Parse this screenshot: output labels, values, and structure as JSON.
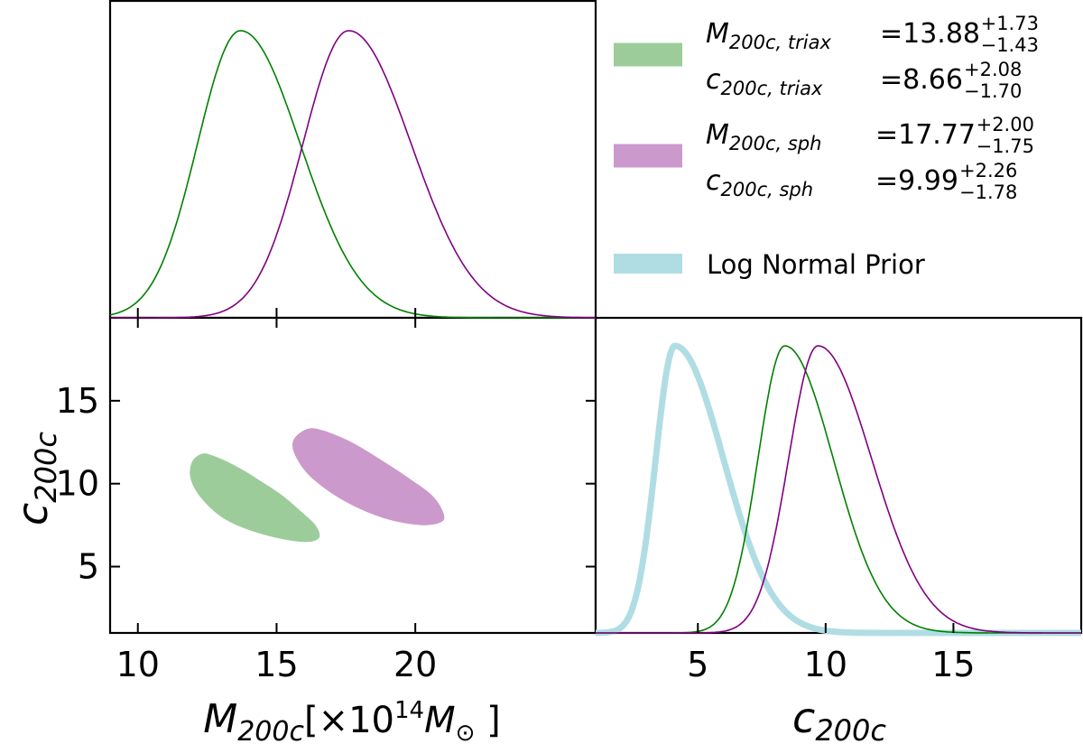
{
  "chart_data": {
    "type": "corner",
    "colors": {
      "triaxial": "#008000",
      "spherical": "#800080",
      "triaxial_fill": "#9dcc9b",
      "spherical_fill": "#cc99cc",
      "prior": "#b0dde3"
    },
    "legend": [
      {
        "swatch": "triaxial_fill",
        "rows": [
          {
            "symbol": "M",
            "sub": "200c, triax",
            "eq": "=",
            "value": "13.88",
            "plus": "+1.73",
            "minus": "−1.43"
          },
          {
            "symbol": "c",
            "sub": "200c, triax",
            "eq": "=",
            "value": "8.66",
            "plus": "+2.08",
            "minus": "−1.70"
          }
        ]
      },
      {
        "swatch": "spherical_fill",
        "rows": [
          {
            "symbol": "M",
            "sub": "200c, sph",
            "eq": "=",
            "value": "17.77",
            "plus": "+2.00",
            "minus": "−1.75"
          },
          {
            "symbol": "c",
            "sub": "200c, sph",
            "eq": "=",
            "value": "9.99",
            "plus": "+2.26",
            "minus": "−1.78"
          }
        ]
      },
      {
        "swatch": "prior",
        "label": "Log Normal Prior"
      }
    ],
    "panels": {
      "mass_marginal": {
        "type": "line",
        "xlim": [
          9,
          26.5
        ],
        "ticks": [
          10,
          15,
          20
        ],
        "series": [
          {
            "key": "triaxial",
            "mode": 13.7,
            "sigma_left": 1.55,
            "sigma_right": 2.15
          },
          {
            "key": "spherical",
            "mode": 17.6,
            "sigma_left": 1.65,
            "sigma_right": 2.25
          }
        ]
      },
      "joint": {
        "type": "contour",
        "xlim": [
          9,
          26.5
        ],
        "ylim": [
          1,
          20
        ],
        "xticks": [
          10,
          15,
          20
        ],
        "yticks": [
          5,
          10,
          15
        ],
        "xlabel_symbol": "M",
        "xlabel_sub": "200c",
        "xlabel_unit_open": "[×10",
        "xlabel_unit_exp": "14",
        "xlabel_unit_sym": "M",
        "xlabel_unit_sub": "⊙",
        "xlabel_unit_close": " ]",
        "ylabel_symbol": "c",
        "ylabel_sub": "200c",
        "regions": [
          {
            "key": "triaxial",
            "boundary": [
              [
                12.3,
                11.8
              ],
              [
                12.7,
                11.7
              ],
              [
                13.5,
                11.1
              ],
              [
                14.3,
                10.3
              ],
              [
                15.2,
                9.3
              ],
              [
                15.9,
                8.3
              ],
              [
                16.4,
                7.5
              ],
              [
                16.55,
                6.8
              ],
              [
                16.2,
                6.5
              ],
              [
                15.4,
                6.6
              ],
              [
                14.2,
                7.1
              ],
              [
                13.1,
                7.9
              ],
              [
                12.3,
                9.1
              ],
              [
                11.9,
                10.3
              ],
              [
                11.95,
                11.3
              ]
            ]
          },
          {
            "key": "spherical",
            "boundary": [
              [
                16.1,
                13.3
              ],
              [
                16.7,
                13.2
              ],
              [
                17.7,
                12.5
              ],
              [
                18.8,
                11.4
              ],
              [
                19.8,
                10.3
              ],
              [
                20.6,
                9.3
              ],
              [
                21.0,
                8.3
              ],
              [
                20.95,
                7.7
              ],
              [
                20.2,
                7.5
              ],
              [
                18.9,
                7.9
              ],
              [
                17.5,
                8.9
              ],
              [
                16.3,
                10.3
              ],
              [
                15.7,
                11.6
              ],
              [
                15.6,
                12.6
              ]
            ]
          }
        ]
      },
      "conc_marginal": {
        "type": "line",
        "xlim": [
          1,
          20
        ],
        "ticks": [
          5,
          10,
          15
        ],
        "xlabel_symbol": "c",
        "xlabel_sub": "200c",
        "series": [
          {
            "key": "prior",
            "mode": 4.1,
            "sigma_left": 0.75,
            "sigma_right": 1.9
          },
          {
            "key": "triaxial",
            "mode": 8.4,
            "sigma_left": 1.05,
            "sigma_right": 1.9
          },
          {
            "key": "spherical",
            "mode": 9.7,
            "sigma_left": 1.15,
            "sigma_right": 2.1
          }
        ]
      }
    }
  }
}
